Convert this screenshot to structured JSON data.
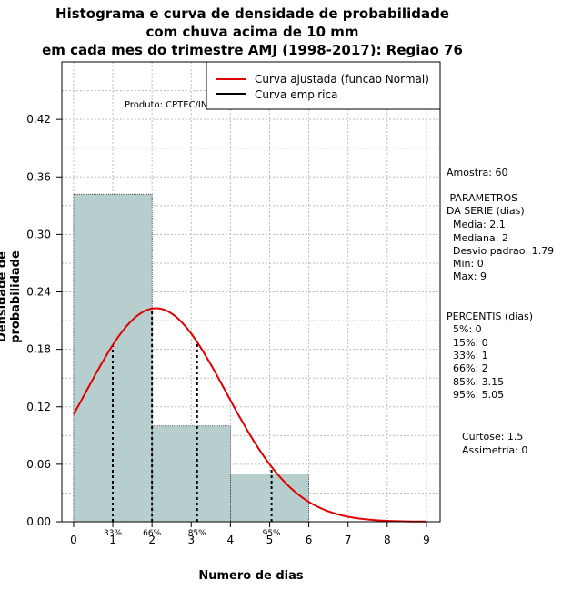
{
  "title": {
    "line1": "Histograma e curva de densidade de probabilidade",
    "line2": "com chuva acima de 10 mm",
    "line3": "em cada mes do trimestre AMJ (1998-2017): Regiao 76"
  },
  "credit": "Produto: CPTEC/INPE",
  "legend": {
    "fitted": "Curva ajustada (funcao Normal)",
    "empirical": "Curva empirica"
  },
  "side_panel": {
    "amostra": "Amostra: 60",
    "parametros_title": " PARAMETROS",
    "parametros_sub": "DA SERIE (dias)",
    "media": "Media: 2.1",
    "mediana": "Mediana: 2",
    "desvio": "Desvio padrao: 1.79",
    "min": "Min: 0",
    "max": "Max: 9",
    "percentis_title": "PERCENTIS (dias)",
    "p5": "5%: 0",
    "p15": "15%: 0",
    "p33": "33%: 1",
    "p66": "66%: 2",
    "p85": "85%: 3.15",
    "p95": "95%: 5.05",
    "curtose": "Curtose: 1.5",
    "assimetria": "Assimetria: 0"
  },
  "colors": {
    "bar_fill": "#b7cece",
    "curve": "#e00000",
    "grid": "#bdbdbd"
  },
  "chart_data": {
    "type": "bar",
    "title": "Histograma e curva de densidade de probabilidade com chuva acima de 10 mm em cada mes do trimestre AMJ (1998-2017): Regiao 76",
    "xlabel": "Numero de dias",
    "ylabel": "Densidade de probabilidade",
    "xlim": [
      -0.3,
      9.35
    ],
    "ylim": [
      0,
      0.48
    ],
    "x_ticks": [
      0,
      1,
      2,
      3,
      4,
      5,
      6,
      7,
      8,
      9
    ],
    "y_ticks": [
      0.0,
      0.06,
      0.12,
      0.18,
      0.24,
      0.3,
      0.36,
      0.42
    ],
    "y_tick_labels": [
      "0.00",
      "0.06",
      "0.12",
      "0.18",
      "0.24",
      "0.30",
      "0.36",
      "0.42"
    ],
    "bins": [
      {
        "start": 0,
        "end": 2,
        "density": 0.342
      },
      {
        "start": 2,
        "end": 4,
        "density": 0.1
      },
      {
        "start": 4,
        "end": 6,
        "density": 0.05
      },
      {
        "start": 6,
        "end": 8,
        "density": 0.0
      },
      {
        "start": 8,
        "end": 10,
        "density": 0.008
      }
    ],
    "fitted_curve": {
      "name": "Curva ajustada (funcao Normal)",
      "mean": 2.1,
      "sd": 1.79,
      "x_range": [
        0,
        9
      ]
    },
    "percentile_markers": [
      {
        "label": "33%",
        "x": 1.0
      },
      {
        "label": "66%",
        "x": 2.0
      },
      {
        "label": "85%",
        "x": 3.15
      },
      {
        "label": "95%",
        "x": 5.05
      }
    ]
  }
}
